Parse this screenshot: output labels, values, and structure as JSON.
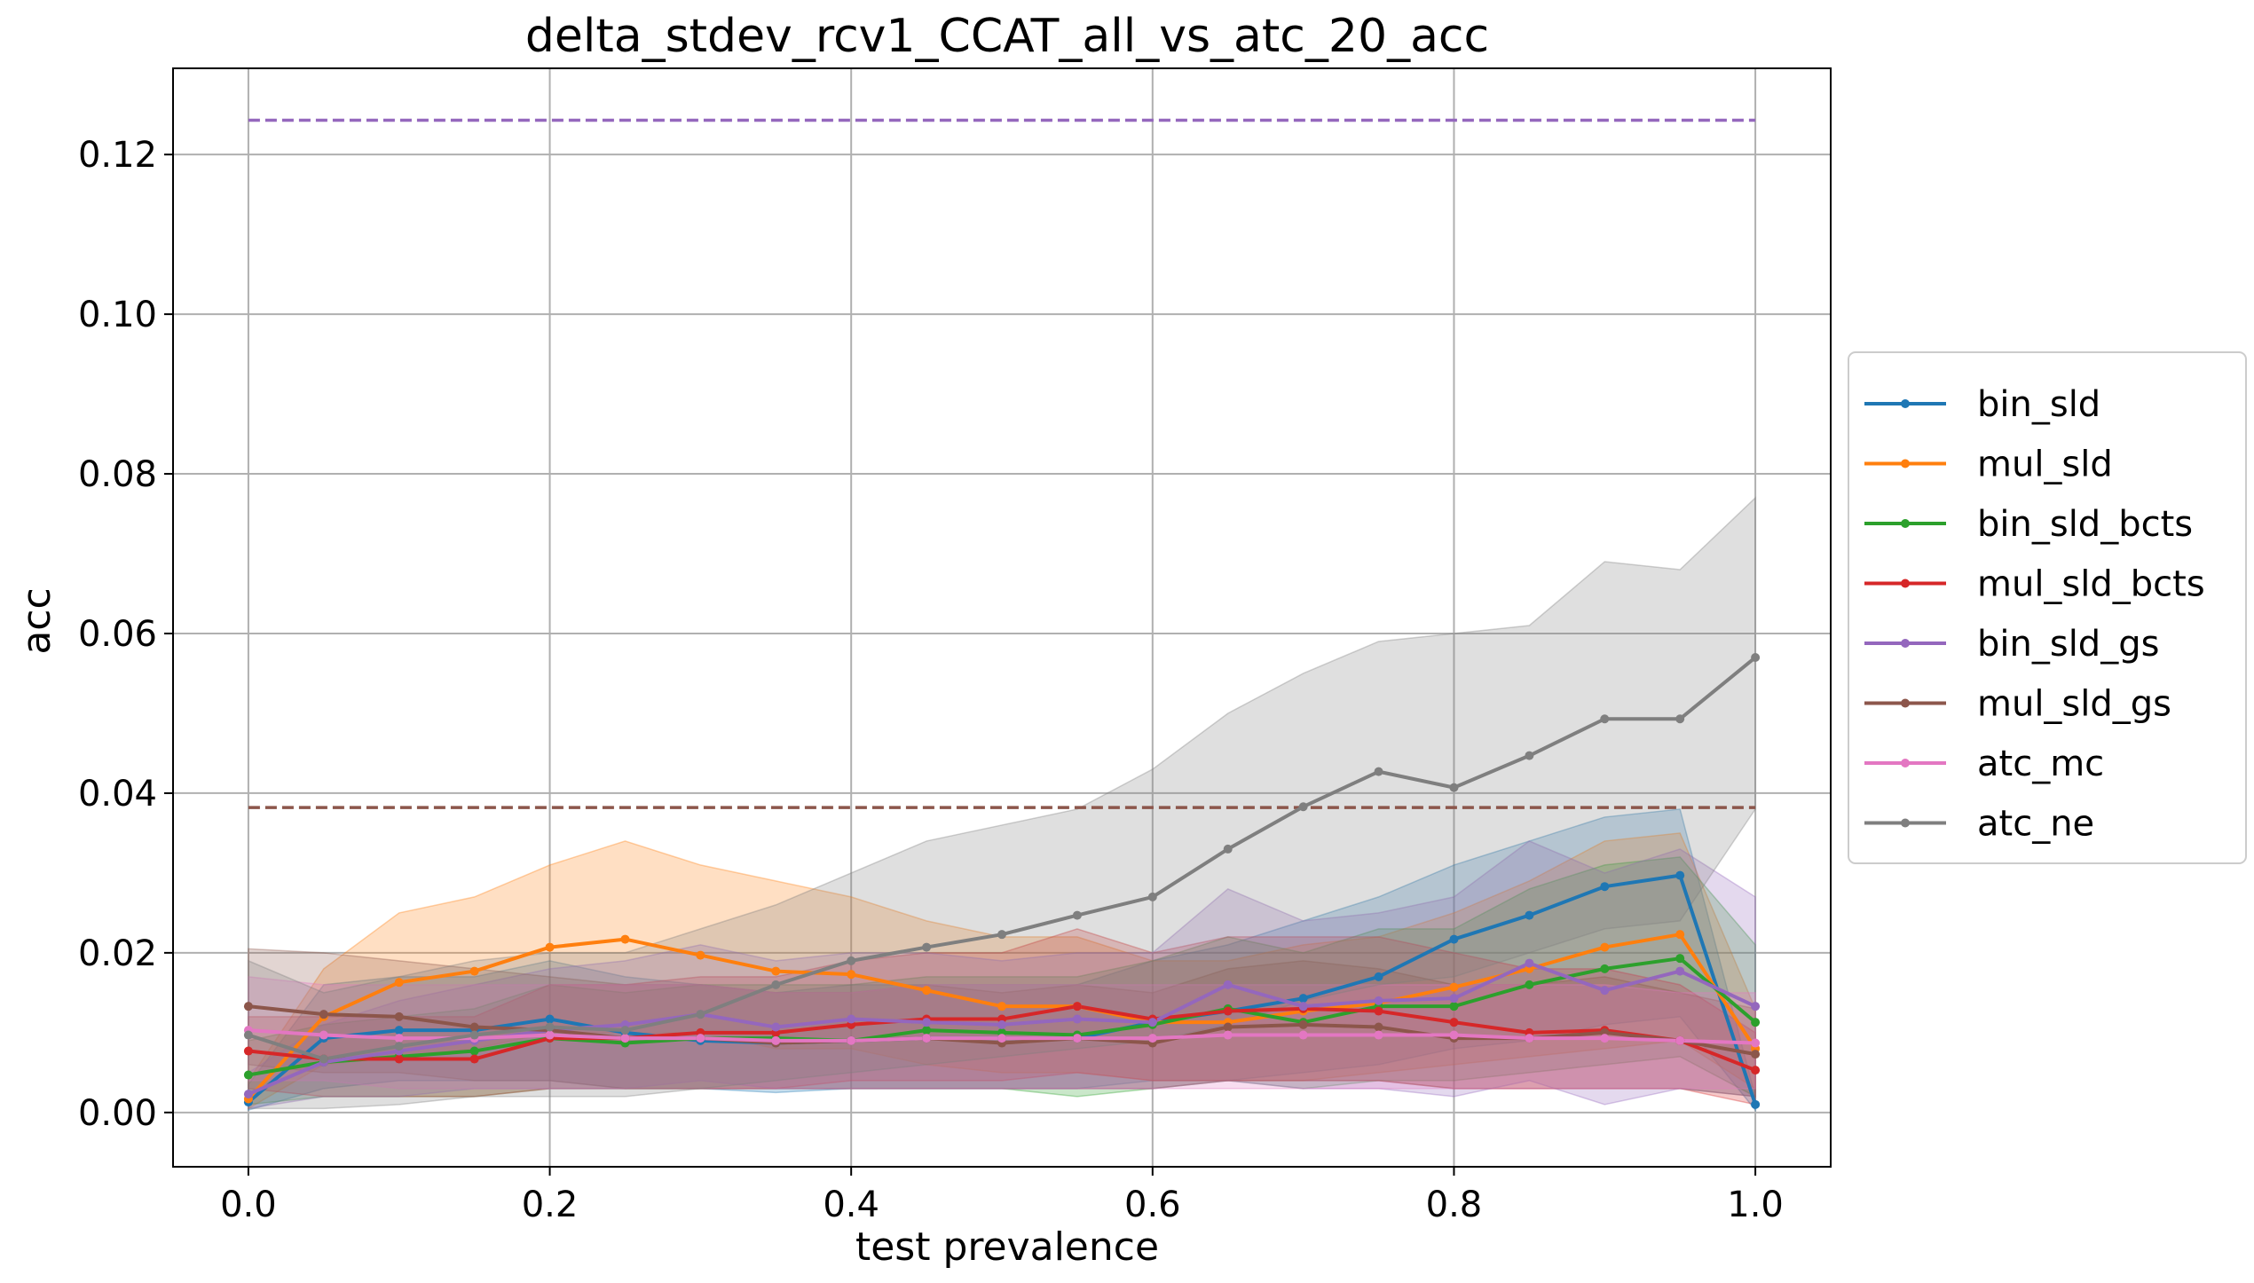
{
  "chart_data": {
    "type": "line",
    "title": "delta_stdev_rcv1_CCAT_all_vs_atc_20_acc",
    "xlabel": "test prevalence",
    "ylabel": "acc",
    "xlim": [
      -0.05,
      1.05
    ],
    "ylim": [
      -0.0068,
      0.1308
    ],
    "xticks": [
      0.0,
      0.2,
      0.4,
      0.6,
      0.8,
      1.0
    ],
    "xtick_labels": [
      "0.0",
      "0.2",
      "0.4",
      "0.6",
      "0.8",
      "1.0"
    ],
    "yticks": [
      0.0,
      0.02,
      0.04,
      0.06,
      0.08,
      0.1,
      0.12
    ],
    "ytick_labels": [
      "0.00",
      "0.02",
      "0.04",
      "0.06",
      "0.08",
      "0.10",
      "0.12"
    ],
    "grid": true,
    "legend_position": "right-outside",
    "x": [
      0.0,
      0.05,
      0.1,
      0.15,
      0.2,
      0.25,
      0.3,
      0.35,
      0.4,
      0.45,
      0.5,
      0.55,
      0.6,
      0.65,
      0.7,
      0.75,
      0.8,
      0.85,
      0.9,
      0.95,
      1.0
    ],
    "series": [
      {
        "name": "bin_sld",
        "color": "#1f77b4",
        "values": [
          0.0013,
          0.0093,
          0.0103,
          0.0103,
          0.0117,
          0.01,
          0.009,
          0.0087,
          0.009,
          0.0093,
          0.0093,
          0.0093,
          0.0113,
          0.0127,
          0.0143,
          0.017,
          0.0217,
          0.0247,
          0.0283,
          0.0297,
          0.001
        ],
        "band": [
          [
            0.0003,
            0.0035
          ],
          [
            0.003,
            0.016
          ],
          [
            0.004,
            0.017
          ],
          [
            0.004,
            0.017
          ],
          [
            0.004,
            0.019
          ],
          [
            0.003,
            0.017
          ],
          [
            0.003,
            0.016
          ],
          [
            0.0025,
            0.015
          ],
          [
            0.003,
            0.016
          ],
          [
            0.003,
            0.016
          ],
          [
            0.003,
            0.016
          ],
          [
            0.003,
            0.016
          ],
          [
            0.004,
            0.019
          ],
          [
            0.004,
            0.021
          ],
          [
            0.005,
            0.024
          ],
          [
            0.006,
            0.027
          ],
          [
            0.008,
            0.031
          ],
          [
            0.009,
            0.034
          ],
          [
            0.011,
            0.037
          ],
          [
            0.012,
            0.038
          ],
          [
            0.0003,
            0.002
          ]
        ]
      },
      {
        "name": "mul_sld",
        "color": "#ff7f0e",
        "values": [
          0.0017,
          0.012,
          0.0163,
          0.0177,
          0.0207,
          0.0217,
          0.0197,
          0.0177,
          0.0173,
          0.0153,
          0.0133,
          0.0133,
          0.0113,
          0.0113,
          0.0127,
          0.0137,
          0.0157,
          0.018,
          0.0207,
          0.0223,
          0.008
        ],
        "band": [
          [
            0.0005,
            0.004
          ],
          [
            0.006,
            0.018
          ],
          [
            0.007,
            0.025
          ],
          [
            0.008,
            0.027
          ],
          [
            0.01,
            0.031
          ],
          [
            0.01,
            0.034
          ],
          [
            0.01,
            0.031
          ],
          [
            0.008,
            0.029
          ],
          [
            0.008,
            0.027
          ],
          [
            0.006,
            0.024
          ],
          [
            0.005,
            0.022
          ],
          [
            0.005,
            0.022
          ],
          [
            0.004,
            0.019
          ],
          [
            0.004,
            0.019
          ],
          [
            0.004,
            0.021
          ],
          [
            0.005,
            0.022
          ],
          [
            0.006,
            0.025
          ],
          [
            0.007,
            0.029
          ],
          [
            0.008,
            0.034
          ],
          [
            0.009,
            0.035
          ],
          [
            0.003,
            0.013
          ]
        ]
      },
      {
        "name": "bin_sld_bcts",
        "color": "#2ca02c",
        "values": [
          0.0047,
          0.0063,
          0.007,
          0.0077,
          0.0093,
          0.0087,
          0.0093,
          0.0093,
          0.009,
          0.0103,
          0.01,
          0.0097,
          0.011,
          0.013,
          0.0113,
          0.0133,
          0.0133,
          0.016,
          0.018,
          0.0193,
          0.0113
        ],
        "band": [
          [
            0.001,
            0.009
          ],
          [
            0.002,
            0.011
          ],
          [
            0.002,
            0.012
          ],
          [
            0.002,
            0.013
          ],
          [
            0.003,
            0.016
          ],
          [
            0.003,
            0.015
          ],
          [
            0.003,
            0.016
          ],
          [
            0.003,
            0.016
          ],
          [
            0.003,
            0.016
          ],
          [
            0.003,
            0.017
          ],
          [
            0.003,
            0.017
          ],
          [
            0.002,
            0.017
          ],
          [
            0.003,
            0.019
          ],
          [
            0.004,
            0.022
          ],
          [
            0.003,
            0.02
          ],
          [
            0.004,
            0.023
          ],
          [
            0.004,
            0.023
          ],
          [
            0.005,
            0.028
          ],
          [
            0.006,
            0.031
          ],
          [
            0.007,
            0.032
          ],
          [
            0.002,
            0.021
          ]
        ]
      },
      {
        "name": "mul_sld_bcts",
        "color": "#d62728",
        "values": [
          0.0077,
          0.0067,
          0.0067,
          0.0067,
          0.0093,
          0.0093,
          0.01,
          0.01,
          0.011,
          0.0117,
          0.0117,
          0.0133,
          0.0117,
          0.0127,
          0.013,
          0.0127,
          0.0113,
          0.01,
          0.0103,
          0.009,
          0.0053
        ],
        "band": [
          [
            0.003,
            0.012
          ],
          [
            0.002,
            0.012
          ],
          [
            0.002,
            0.012
          ],
          [
            0.002,
            0.012
          ],
          [
            0.003,
            0.016
          ],
          [
            0.003,
            0.016
          ],
          [
            0.003,
            0.017
          ],
          [
            0.003,
            0.017
          ],
          [
            0.004,
            0.019
          ],
          [
            0.004,
            0.02
          ],
          [
            0.004,
            0.02
          ],
          [
            0.005,
            0.023
          ],
          [
            0.004,
            0.02
          ],
          [
            0.004,
            0.022
          ],
          [
            0.004,
            0.022
          ],
          [
            0.004,
            0.022
          ],
          [
            0.003,
            0.02
          ],
          [
            0.003,
            0.018
          ],
          [
            0.003,
            0.018
          ],
          [
            0.003,
            0.016
          ],
          [
            0.001,
            0.01
          ]
        ]
      },
      {
        "name": "bin_sld_gs",
        "color": "#9467bd",
        "values": [
          0.0023,
          0.0063,
          0.0077,
          0.009,
          0.0103,
          0.011,
          0.0123,
          0.0107,
          0.0117,
          0.0113,
          0.011,
          0.0117,
          0.0113,
          0.016,
          0.0133,
          0.014,
          0.0143,
          0.0187,
          0.0153,
          0.0177,
          0.0133
        ],
        "band": [
          [
            0.0005,
            0.005
          ],
          [
            0.002,
            0.011
          ],
          [
            0.002,
            0.014
          ],
          [
            0.003,
            0.016
          ],
          [
            0.003,
            0.018
          ],
          [
            0.003,
            0.019
          ],
          [
            0.004,
            0.021
          ],
          [
            0.003,
            0.019
          ],
          [
            0.003,
            0.02
          ],
          [
            0.003,
            0.02
          ],
          [
            0.003,
            0.019
          ],
          [
            0.003,
            0.02
          ],
          [
            0.003,
            0.02
          ],
          [
            0.004,
            0.028
          ],
          [
            0.003,
            0.024
          ],
          [
            0.003,
            0.025
          ],
          [
            0.002,
            0.027
          ],
          [
            0.004,
            0.034
          ],
          [
            0.001,
            0.03
          ],
          [
            0.003,
            0.033
          ],
          [
            0.002,
            0.027
          ]
        ]
      },
      {
        "name": "mul_sld_gs",
        "color": "#8c564b",
        "values": [
          0.0133,
          0.0123,
          0.012,
          0.0107,
          0.0103,
          0.0093,
          0.0093,
          0.0087,
          0.009,
          0.0093,
          0.0087,
          0.0093,
          0.0087,
          0.0107,
          0.011,
          0.0107,
          0.0093,
          0.0093,
          0.01,
          0.009,
          0.0073
        ],
        "band": [
          [
            0.006,
            0.0205
          ],
          [
            0.005,
            0.02
          ],
          [
            0.005,
            0.019
          ],
          [
            0.004,
            0.018
          ],
          [
            0.004,
            0.017
          ],
          [
            0.003,
            0.016
          ],
          [
            0.003,
            0.016
          ],
          [
            0.003,
            0.015
          ],
          [
            0.003,
            0.015
          ],
          [
            0.003,
            0.016
          ],
          [
            0.003,
            0.015
          ],
          [
            0.003,
            0.016
          ],
          [
            0.003,
            0.015
          ],
          [
            0.004,
            0.018
          ],
          [
            0.004,
            0.019
          ],
          [
            0.004,
            0.018
          ],
          [
            0.003,
            0.016
          ],
          [
            0.003,
            0.016
          ],
          [
            0.003,
            0.017
          ],
          [
            0.003,
            0.015
          ],
          [
            0.002,
            0.013
          ]
        ]
      },
      {
        "name": "atc_mc",
        "color": "#e377c2",
        "values": [
          0.0103,
          0.0097,
          0.0093,
          0.0093,
          0.0097,
          0.0093,
          0.0093,
          0.009,
          0.009,
          0.0093,
          0.0093,
          0.0093,
          0.0093,
          0.0097,
          0.0097,
          0.0097,
          0.0097,
          0.0093,
          0.0093,
          0.009,
          0.0087
        ],
        "band": [
          [
            0.004,
            0.017
          ],
          [
            0.004,
            0.016
          ],
          [
            0.003,
            0.016
          ],
          [
            0.003,
            0.016
          ],
          [
            0.003,
            0.016
          ],
          [
            0.003,
            0.016
          ],
          [
            0.003,
            0.016
          ],
          [
            0.003,
            0.015
          ],
          [
            0.003,
            0.015
          ],
          [
            0.003,
            0.016
          ],
          [
            0.003,
            0.016
          ],
          [
            0.003,
            0.016
          ],
          [
            0.003,
            0.016
          ],
          [
            0.003,
            0.016
          ],
          [
            0.003,
            0.016
          ],
          [
            0.003,
            0.016
          ],
          [
            0.003,
            0.016
          ],
          [
            0.003,
            0.016
          ],
          [
            0.003,
            0.016
          ],
          [
            0.003,
            0.015
          ],
          [
            0.003,
            0.015
          ]
        ]
      },
      {
        "name": "atc_ne",
        "color": "#7f7f7f",
        "values": [
          0.0097,
          0.0067,
          0.0083,
          0.0097,
          0.0107,
          0.0103,
          0.0123,
          0.016,
          0.019,
          0.0207,
          0.0223,
          0.0247,
          0.027,
          0.033,
          0.0383,
          0.0427,
          0.0407,
          0.0447,
          0.0493,
          0.0493,
          0.057
        ],
        "band": [
          [
            0.0005,
            0.019
          ],
          [
            0.0005,
            0.015
          ],
          [
            0.001,
            0.017
          ],
          [
            0.002,
            0.019
          ],
          [
            0.002,
            0.02
          ],
          [
            0.002,
            0.02
          ],
          [
            0.003,
            0.023
          ],
          [
            0.004,
            0.026
          ],
          [
            0.005,
            0.03
          ],
          [
            0.006,
            0.034
          ],
          [
            0.007,
            0.036
          ],
          [
            0.008,
            0.038
          ],
          [
            0.009,
            0.043
          ],
          [
            0.011,
            0.05
          ],
          [
            0.014,
            0.055
          ],
          [
            0.016,
            0.059
          ],
          [
            0.017,
            0.06
          ],
          [
            0.02,
            0.061
          ],
          [
            0.023,
            0.069
          ],
          [
            0.024,
            0.068
          ],
          [
            0.038,
            0.077
          ]
        ]
      }
    ],
    "hlines": [
      {
        "y": 0.1243,
        "color": "#9467bd",
        "style": "dashed",
        "from": 0.0,
        "to": 1.0
      },
      {
        "y": 0.0382,
        "color": "#8c564b",
        "style": "dashed",
        "from": 0.0,
        "to": 1.0
      }
    ]
  }
}
